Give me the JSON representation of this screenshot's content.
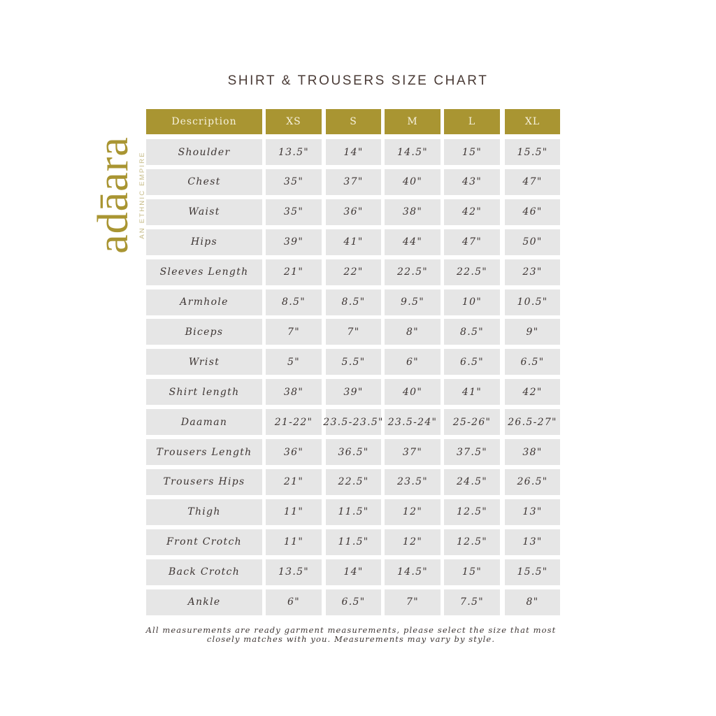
{
  "title": "SHIRT & TROUSERS SIZE CHART",
  "logo": {
    "wordmark": "adāara",
    "tagline": "AN ETHNIC EMPIRE",
    "color": "#a99532"
  },
  "header_color": "#a99532",
  "columns": [
    "Description",
    "XS",
    "S",
    "M",
    "L",
    "XL"
  ],
  "rows": [
    {
      "label": "Shoulder",
      "values": [
        "13.5\"",
        "14\"",
        "14.5\"",
        "15\"",
        "15.5\""
      ]
    },
    {
      "label": "Chest",
      "values": [
        "35\"",
        "37\"",
        "40\"",
        "43\"",
        "47\""
      ]
    },
    {
      "label": "Waist",
      "values": [
        "35\"",
        "36\"",
        "38\"",
        "42\"",
        "46\""
      ]
    },
    {
      "label": "Hips",
      "values": [
        "39\"",
        "41\"",
        "44\"",
        "47\"",
        "50\""
      ]
    },
    {
      "label": "Sleeves Length",
      "values": [
        "21\"",
        "22\"",
        "22.5\"",
        "22.5\"",
        "23\""
      ]
    },
    {
      "label": "Armhole",
      "values": [
        "8.5\"",
        "8.5\"",
        "9.5\"",
        "10\"",
        "10.5\""
      ]
    },
    {
      "label": "Biceps",
      "values": [
        "7\"",
        "7\"",
        "8\"",
        "8.5\"",
        "9\""
      ]
    },
    {
      "label": "Wrist",
      "values": [
        "5\"",
        "5.5\"",
        "6\"",
        "6.5\"",
        "6.5\""
      ]
    },
    {
      "label": "Shirt length",
      "values": [
        "38\"",
        "39\"",
        "40\"",
        "41\"",
        "42\""
      ]
    },
    {
      "label": "Daaman",
      "values": [
        "21-22\"",
        "23.5-23.5\"",
        "23.5-24\"",
        "25-26\"",
        "26.5-27\""
      ]
    },
    {
      "label": "Trousers Length",
      "values": [
        "36\"",
        "36.5\"",
        "37\"",
        "37.5\"",
        "38\""
      ]
    },
    {
      "label": "Trousers Hips",
      "values": [
        "21\"",
        "22.5\"",
        "23.5\"",
        "24.5\"",
        "26.5\""
      ]
    },
    {
      "label": "Thigh",
      "values": [
        "11\"",
        "11.5\"",
        "12\"",
        "12.5\"",
        "13\""
      ]
    },
    {
      "label": "Front Crotch",
      "values": [
        "11\"",
        "11.5\"",
        "12\"",
        "12.5\"",
        "13\""
      ]
    },
    {
      "label": "Back Crotch",
      "values": [
        "13.5\"",
        "14\"",
        "14.5\"",
        "15\"",
        "15.5\""
      ]
    },
    {
      "label": "Ankle",
      "values": [
        "6\"",
        "6.5\"",
        "7\"",
        "7.5\"",
        "8\""
      ]
    }
  ],
  "note": "All measurements are ready garment measurements, please select the size that most closely matches with you. Measurements may vary by style."
}
